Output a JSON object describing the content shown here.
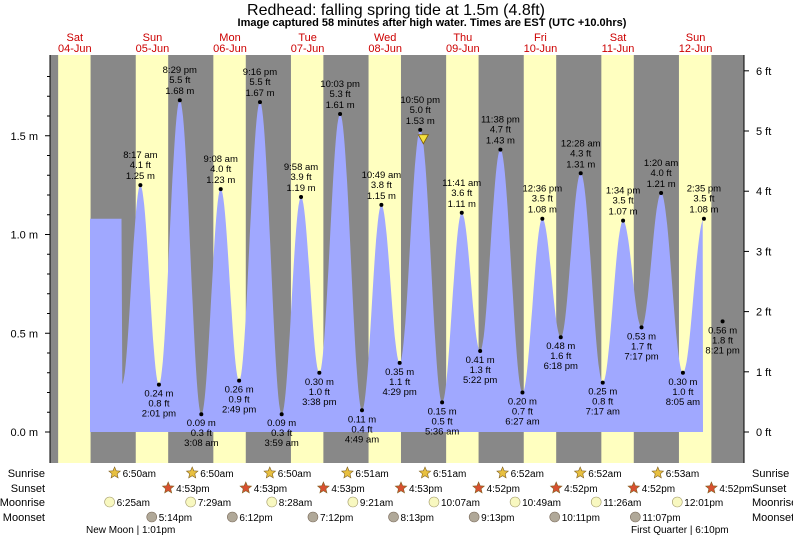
{
  "header": {
    "title": "Redhead: falling  spring tide at 1.5m (4.8ft)",
    "subtitle": "Image captured 58 minutes after high water. Times are EST (UTC +10.0hrs)"
  },
  "colors": {
    "night": "#888888",
    "day": "#ffffc0",
    "tide": "#a0a8ff",
    "date_red": "#cc0000",
    "moon": "#f8f8c0",
    "moonset": "#b0a898",
    "star": "#e8c040",
    "sunset_star": "#d85030"
  },
  "chart_data": {
    "type": "area",
    "title": "Redhead: falling  spring tide at 1.5m (4.8ft)",
    "days": [
      {
        "dow": "Sat",
        "date": "04-Jun"
      },
      {
        "dow": "Sun",
        "date": "05-Jun"
      },
      {
        "dow": "Mon",
        "date": "06-Jun"
      },
      {
        "dow": "Tue",
        "date": "07-Jun"
      },
      {
        "dow": "Wed",
        "date": "08-Jun"
      },
      {
        "dow": "Thu",
        "date": "09-Jun"
      },
      {
        "dow": "Fri",
        "date": "10-Jun"
      },
      {
        "dow": "Sat",
        "date": "11-Jun"
      },
      {
        "dow": "Sun",
        "date": "12-Jun"
      }
    ],
    "y_left": {
      "unit": "m",
      "ticks": [
        "0.0 m",
        "0.5 m",
        "1.0 m",
        "1.5 m"
      ],
      "range_m": [
        -0.05,
        1.88
      ]
    },
    "y_right": {
      "unit": "ft",
      "ticks": [
        "0 ft",
        "1 ft",
        "2 ft",
        "3 ft",
        "4 ft",
        "5 ft",
        "6 ft"
      ]
    },
    "extrema": [
      {
        "type": "high",
        "time": "8:17 am",
        "ft": "4.1 ft",
        "m": 1.25,
        "m_label": "1.25 m",
        "day": 1,
        "hour": 8.28
      },
      {
        "type": "low",
        "time": "2:01 pm",
        "ft": "0.8 ft",
        "m": 0.24,
        "m_label": "0.24 m",
        "day": 1,
        "hour": 14.02
      },
      {
        "type": "high",
        "time": "8:29 pm",
        "ft": "5.5 ft",
        "m": 1.68,
        "m_label": "1.68 m",
        "day": 1,
        "hour": 20.48
      },
      {
        "type": "low",
        "time": "3:08 am",
        "ft": "0.3 ft",
        "m": 0.09,
        "m_label": "0.09 m",
        "day": 2,
        "hour": 3.13
      },
      {
        "type": "high",
        "time": "9:08 am",
        "ft": "4.0 ft",
        "m": 1.23,
        "m_label": "1.23 m",
        "day": 2,
        "hour": 9.13
      },
      {
        "type": "low",
        "time": "2:49 pm",
        "ft": "0.9 ft",
        "m": 0.26,
        "m_label": "0.26 m",
        "day": 2,
        "hour": 14.82
      },
      {
        "type": "high",
        "time": "9:16 pm",
        "ft": "5.5 ft",
        "m": 1.67,
        "m_label": "1.67 m",
        "day": 2,
        "hour": 21.27
      },
      {
        "type": "low",
        "time": "3:59 am",
        "ft": "0.3 ft",
        "m": 0.09,
        "m_label": "0.09 m",
        "day": 3,
        "hour": 3.98
      },
      {
        "type": "high",
        "time": "9:58 am",
        "ft": "3.9 ft",
        "m": 1.19,
        "m_label": "1.19 m",
        "day": 3,
        "hour": 9.97
      },
      {
        "type": "low",
        "time": "3:38 pm",
        "ft": "1.0 ft",
        "m": 0.3,
        "m_label": "0.30 m",
        "day": 3,
        "hour": 15.63
      },
      {
        "type": "high",
        "time": "10:03 pm",
        "ft": "5.3 ft",
        "m": 1.61,
        "m_label": "1.61 m",
        "day": 3,
        "hour": 22.05
      },
      {
        "type": "low",
        "time": "4:49 am",
        "ft": "0.4 ft",
        "m": 0.11,
        "m_label": "0.11 m",
        "day": 4,
        "hour": 4.82
      },
      {
        "type": "high",
        "time": "10:49 am",
        "ft": "3.8 ft",
        "m": 1.15,
        "m_label": "1.15 m",
        "day": 4,
        "hour": 10.82
      },
      {
        "type": "low",
        "time": "4:29 pm",
        "ft": "1.1 ft",
        "m": 0.35,
        "m_label": "0.35 m",
        "day": 4,
        "hour": 16.48
      },
      {
        "type": "high",
        "time": "10:50 pm",
        "ft": "5.0 ft",
        "m": 1.53,
        "m_label": "1.53 m",
        "day": 4,
        "hour": 22.83
      },
      {
        "type": "low",
        "time": "5:36 am",
        "ft": "0.5 ft",
        "m": 0.15,
        "m_label": "0.15 m",
        "day": 5,
        "hour": 5.6
      },
      {
        "type": "high",
        "time": "11:41 am",
        "ft": "3.6 ft",
        "m": 1.11,
        "m_label": "1.11 m",
        "day": 5,
        "hour": 11.68
      },
      {
        "type": "low",
        "time": "5:22 pm",
        "ft": "1.3 ft",
        "m": 0.41,
        "m_label": "0.41 m",
        "day": 5,
        "hour": 17.37
      },
      {
        "type": "high",
        "time": "11:38 pm",
        "ft": "4.7 ft",
        "m": 1.43,
        "m_label": "1.43 m",
        "day": 5,
        "hour": 23.63
      },
      {
        "type": "low",
        "time": "6:27 am",
        "ft": "0.7 ft",
        "m": 0.2,
        "m_label": "0.20 m",
        "day": 6,
        "hour": 6.45
      },
      {
        "type": "high",
        "time": "12:36 pm",
        "ft": "3.5 ft",
        "m": 1.08,
        "m_label": "1.08 m",
        "day": 6,
        "hour": 12.6
      },
      {
        "type": "low",
        "time": "6:18 pm",
        "ft": "1.6 ft",
        "m": 0.48,
        "m_label": "0.48 m",
        "day": 6,
        "hour": 18.3
      },
      {
        "type": "high",
        "time": "12:28 am",
        "ft": "4.3 ft",
        "m": 1.31,
        "m_label": "1.31 m",
        "day": 7,
        "hour": 0.47
      },
      {
        "type": "low",
        "time": "7:17 am",
        "ft": "0.8 ft",
        "m": 0.25,
        "m_label": "0.25 m",
        "day": 7,
        "hour": 7.28
      },
      {
        "type": "high",
        "time": "1:34 pm",
        "ft": "3.5 ft",
        "m": 1.07,
        "m_label": "1.07 m",
        "day": 7,
        "hour": 13.57
      },
      {
        "type": "low",
        "time": "7:17 pm",
        "ft": "1.7 ft",
        "m": 0.53,
        "m_label": "0.53 m",
        "day": 7,
        "hour": 19.28
      },
      {
        "type": "high",
        "time": "1:20 am",
        "ft": "4.0 ft",
        "m": 1.21,
        "m_label": "1.21 m",
        "day": 8,
        "hour": 1.33
      },
      {
        "type": "low",
        "time": "8:05 am",
        "ft": "1.0 ft",
        "m": 0.3,
        "m_label": "0.30 m",
        "day": 8,
        "hour": 8.08
      },
      {
        "type": "high",
        "time": "2:35 pm",
        "ft": "3.5 ft",
        "m": 1.08,
        "m_label": "1.08 m",
        "day": 8,
        "hour": 14.58
      },
      {
        "type": "low",
        "time": "8:21 pm",
        "ft": "1.8 ft",
        "m": 0.56,
        "m_label": "0.56 m",
        "day": 8,
        "hour": 20.35
      }
    ],
    "current": {
      "m": 1.5,
      "day": 4,
      "hour": 23.8
    },
    "sun": {
      "sunrise_label": "Sunrise",
      "sunset_label": "Sunset",
      "sunrise": [
        "6:50am",
        "6:50am",
        "6:50am",
        "6:51am",
        "6:51am",
        "6:52am",
        "6:52am",
        "6:53am"
      ],
      "sunset": [
        "4:53pm",
        "4:53pm",
        "4:53pm",
        "4:53pm",
        "4:52pm",
        "4:52pm",
        "4:52pm",
        "4:52pm"
      ]
    },
    "moon": {
      "moonrise_label": "Moonrise",
      "moonset_label": "Moonset",
      "moonrise": [
        "6:25am",
        "7:29am",
        "8:28am",
        "9:21am",
        "10:07am",
        "10:49am",
        "11:26am",
        "12:01pm"
      ],
      "moonset": [
        "5:14pm",
        "6:12pm",
        "7:12pm",
        "8:13pm",
        "9:13pm",
        "10:11pm",
        "11:07pm"
      ],
      "new_moon": "New Moon | 1:01pm",
      "first_quarter": "First Quarter | 6:10pm"
    }
  }
}
